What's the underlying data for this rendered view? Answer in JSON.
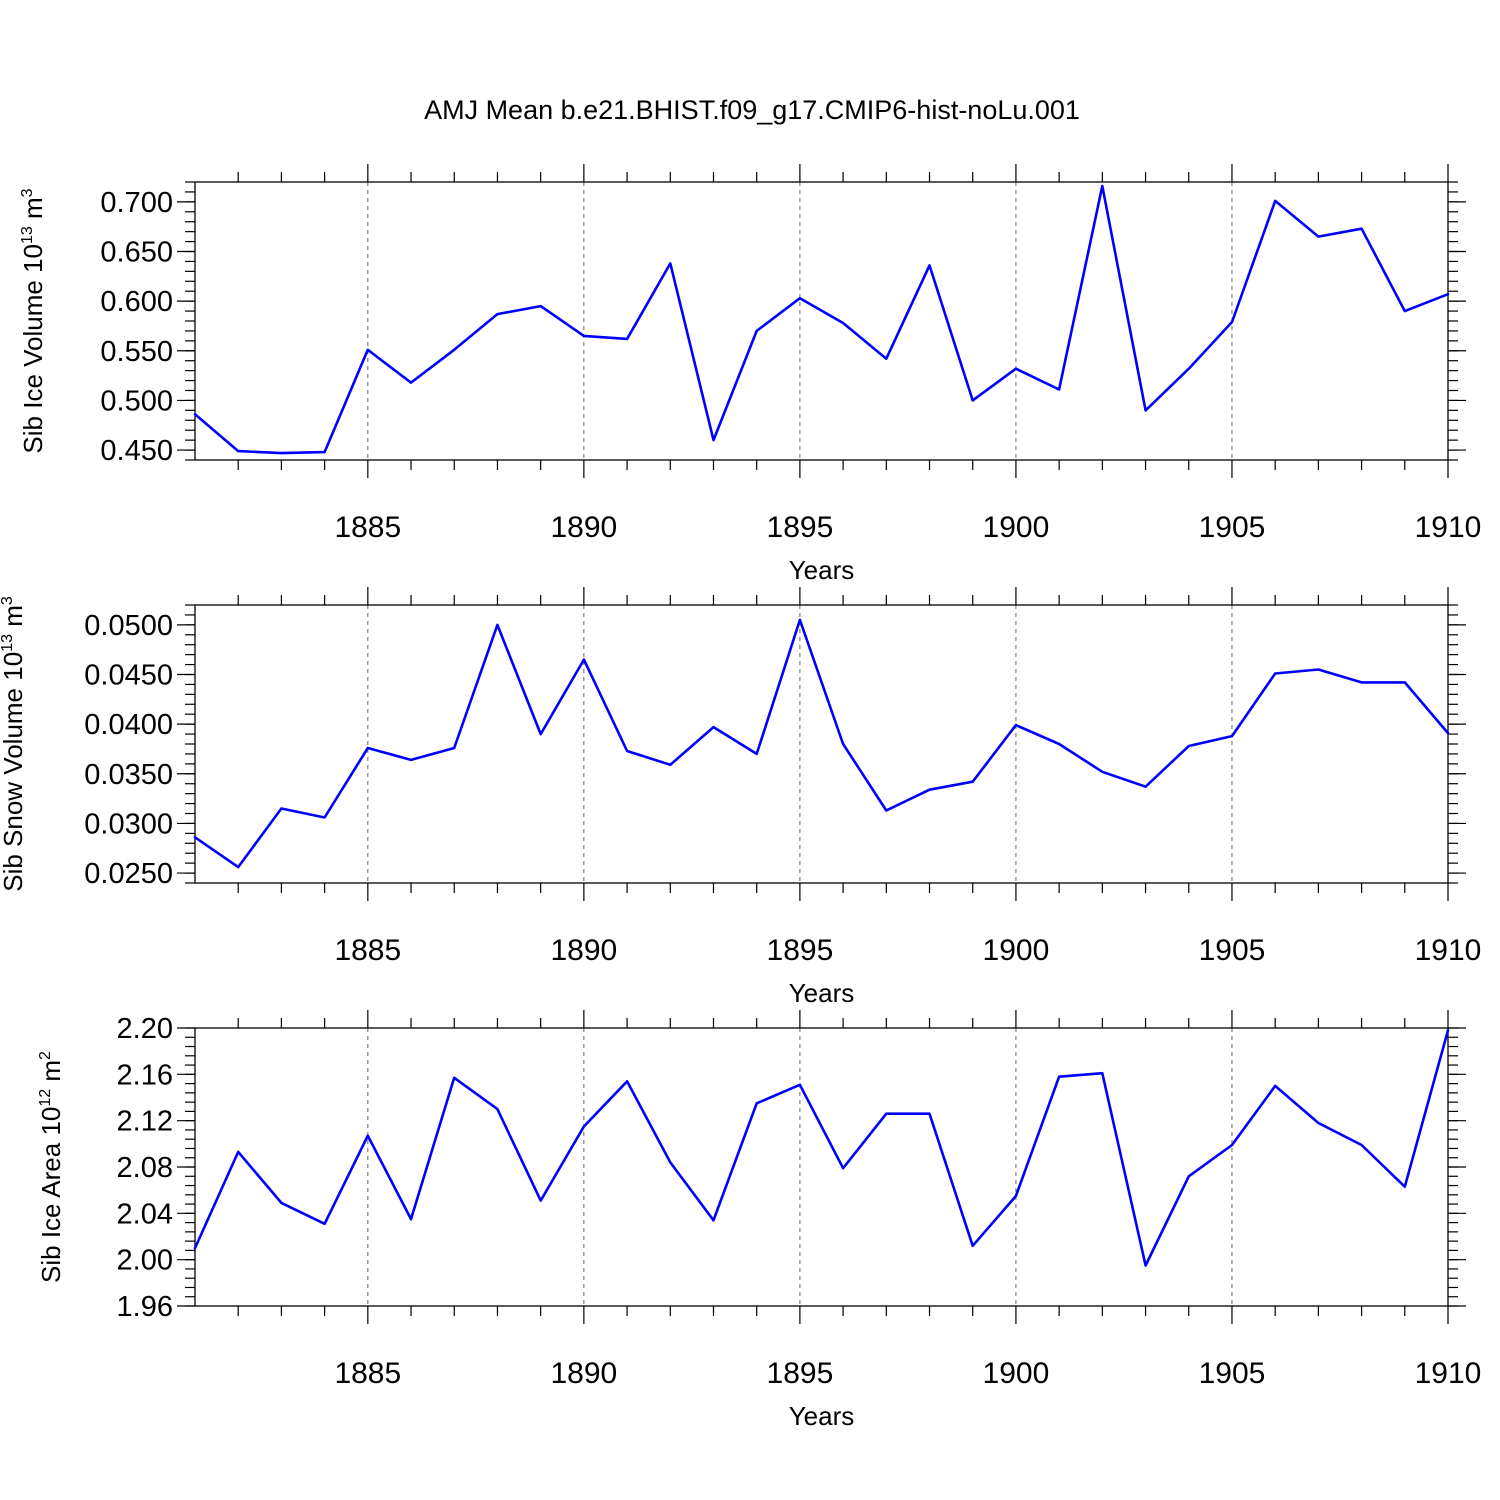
{
  "title": "AMJ Mean b.e21.BHIST.f09_g17.CMIP6-hist-noLu.001",
  "colors": {
    "line": "#0000ff",
    "grid": "#666666",
    "axis": "#000000"
  },
  "chart_data": [
    {
      "type": "line",
      "ylabel": "Sib Ice Volume 10",
      "ylabel_exponent": "13",
      "ylabel_unit": "m",
      "ylabel_unit_exponent": "3",
      "xlabel": "Years",
      "xlim": [
        1881,
        1910
      ],
      "ylim": [
        0.44,
        0.72
      ],
      "yticks": [
        "0.450",
        "0.500",
        "0.550",
        "0.600",
        "0.650",
        "0.700"
      ],
      "xticks": [
        "1885",
        "1890",
        "1895",
        "1900",
        "1905",
        "1910"
      ],
      "grid_x": true,
      "series": [
        {
          "x": [
            1881,
            1882,
            1883,
            1884,
            1885,
            1886,
            1887,
            1888,
            1889,
            1890,
            1891,
            1892,
            1893,
            1894,
            1895,
            1896,
            1897,
            1898,
            1899,
            1900,
            1901,
            1902,
            1903,
            1904,
            1905,
            1906,
            1907,
            1908,
            1909,
            1910
          ],
          "y": [
            0.486,
            0.449,
            0.447,
            0.448,
            0.551,
            0.518,
            0.551,
            0.587,
            0.595,
            0.565,
            0.562,
            0.638,
            0.46,
            0.57,
            0.603,
            0.578,
            0.542,
            0.636,
            0.5,
            0.532,
            0.511,
            0.716,
            0.49,
            0.532,
            0.579,
            0.701,
            0.665,
            0.673,
            0.59,
            0.607
          ]
        }
      ]
    },
    {
      "type": "line",
      "ylabel": "Sib Snow Volume 10",
      "ylabel_exponent": "13",
      "ylabel_unit": "m",
      "ylabel_unit_exponent": "3",
      "xlabel": "Years",
      "xlim": [
        1881,
        1910
      ],
      "ylim": [
        0.024,
        0.052
      ],
      "yticks": [
        "0.0250",
        "0.0300",
        "0.0350",
        "0.0400",
        "0.0450",
        "0.0500"
      ],
      "xticks": [
        "1885",
        "1890",
        "1895",
        "1900",
        "1905",
        "1910"
      ],
      "grid_x": true,
      "series": [
        {
          "x": [
            1881,
            1882,
            1883,
            1884,
            1885,
            1886,
            1887,
            1888,
            1889,
            1890,
            1891,
            1892,
            1893,
            1894,
            1895,
            1896,
            1897,
            1898,
            1899,
            1900,
            1901,
            1902,
            1903,
            1904,
            1905,
            1906,
            1907,
            1908,
            1909,
            1910
          ],
          "y": [
            0.0286,
            0.0256,
            0.0315,
            0.0306,
            0.0376,
            0.0364,
            0.0376,
            0.05,
            0.039,
            0.0465,
            0.0373,
            0.0359,
            0.0397,
            0.037,
            0.0505,
            0.038,
            0.0313,
            0.0334,
            0.0342,
            0.0399,
            0.038,
            0.0352,
            0.0337,
            0.0378,
            0.0388,
            0.0451,
            0.0455,
            0.0442,
            0.0442,
            0.0391
          ]
        }
      ]
    },
    {
      "type": "line",
      "ylabel": "Sib Ice Area 10",
      "ylabel_exponent": "12",
      "ylabel_unit": "m",
      "ylabel_unit_exponent": "2",
      "xlabel": "Years",
      "xlim": [
        1881,
        1910
      ],
      "ylim": [
        1.96,
        2.2
      ],
      "yticks": [
        "1.96",
        "2.00",
        "2.04",
        "2.08",
        "2.12",
        "2.16",
        "2.20"
      ],
      "xticks": [
        "1885",
        "1890",
        "1895",
        "1900",
        "1905",
        "1910"
      ],
      "grid_x": true,
      "series": [
        {
          "x": [
            1881,
            1882,
            1883,
            1884,
            1885,
            1886,
            1887,
            1888,
            1889,
            1890,
            1891,
            1892,
            1893,
            1894,
            1895,
            1896,
            1897,
            1898,
            1899,
            1900,
            1901,
            1902,
            1903,
            1904,
            1905,
            1906,
            1907,
            1908,
            1909,
            1910
          ],
          "y": [
            2.01,
            2.093,
            2.049,
            2.031,
            2.107,
            2.035,
            2.157,
            2.13,
            2.051,
            2.115,
            2.154,
            2.084,
            2.034,
            2.135,
            2.151,
            2.079,
            2.126,
            2.126,
            2.012,
            2.055,
            2.158,
            2.161,
            1.995,
            2.072,
            2.099,
            2.15,
            2.118,
            2.099,
            2.063,
            2.198
          ]
        }
      ]
    }
  ]
}
